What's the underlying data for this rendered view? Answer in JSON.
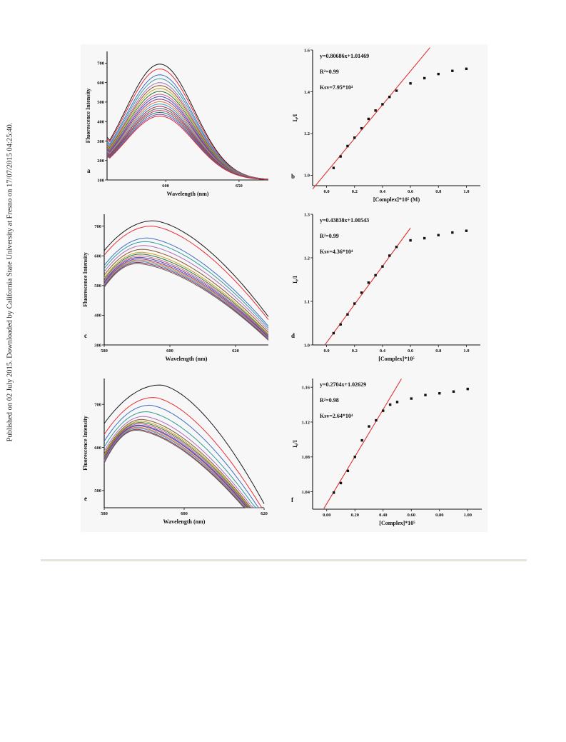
{
  "side_note": "Published on 02 July 2015. Downloaded by California State University at Fresno on 17/07/2015 04:25:40.",
  "chart_data": [
    {
      "panel_label": "a",
      "type": "line",
      "xlabel": "Wavelength (nm)",
      "ylabel": "Fluorescence Intensity",
      "xlim": [
        560,
        670
      ],
      "ylim": [
        100,
        760
      ],
      "xticks": [
        600,
        650
      ],
      "yticks": [
        100,
        200,
        300,
        400,
        500,
        600,
        700
      ],
      "grid": false,
      "peak_x": 596,
      "start_frac": 0.37,
      "end_y": 100,
      "width": 33,
      "curve_peaks": [
        695,
        670,
        640,
        620,
        600,
        585,
        570,
        555,
        540,
        528,
        515,
        502,
        490,
        478,
        467,
        457,
        447,
        437,
        428
      ]
    },
    {
      "panel_label": "c",
      "type": "line",
      "xlabel": "Wavelength (nm)",
      "ylabel": "Fluorescence Intensity",
      "xlim": [
        580,
        630
      ],
      "ylim": [
        300,
        740
      ],
      "xticks": [
        580,
        600,
        620
      ],
      "yticks": [
        300,
        400,
        500,
        600,
        700
      ],
      "grid": false,
      "peak_x": 595,
      "peak_x_low": 590,
      "start_frac": 0.86,
      "end_frac": 0.55,
      "width": 22,
      "curve_peaks": [
        718,
        700,
        660,
        648,
        635,
        622,
        612,
        606,
        600,
        595,
        590,
        586,
        582,
        578,
        574
      ]
    },
    {
      "panel_label": "e",
      "type": "line",
      "xlabel": "Wavelength (nm)",
      "ylabel": "Fluorescence Intensity",
      "xlim": [
        580,
        620
      ],
      "ylim": [
        460,
        760
      ],
      "xticks": [
        580,
        600,
        620
      ],
      "yticks": [
        500,
        600,
        700
      ],
      "grid": false,
      "peak_x": 594,
      "peak_x_low": 588,
      "start_frac": 0.88,
      "end_frac": 0.63,
      "width": 17,
      "curve_peaks": [
        745,
        716,
        698,
        683,
        672,
        665,
        661,
        658,
        655,
        652,
        650,
        647,
        645,
        642,
        640
      ]
    },
    {
      "panel_label": "b",
      "type": "scatter",
      "xlabel": "[Complex]*10⁵ (M)",
      "ylabel": "I₀/I",
      "xlim": [
        -0.1,
        1.1
      ],
      "ylim": [
        0.95,
        1.6
      ],
      "xticks": [
        0.0,
        0.2,
        0.4,
        0.6,
        0.8,
        1.0
      ],
      "yticks": [
        1.0,
        1.2,
        1.4,
        1.6
      ],
      "tick_decimals": 1,
      "grid": false,
      "annotations": [
        "y=0.80686x+1.01469",
        "R²=0.99",
        "Ksv=7.95*10⁴"
      ],
      "fit": {
        "slope": 0.80686,
        "intercept": 1.01469,
        "x_range": [
          -0.1,
          0.74
        ]
      },
      "x": [
        0.05,
        0.1,
        0.15,
        0.2,
        0.25,
        0.3,
        0.35,
        0.4,
        0.45,
        0.5,
        0.6,
        0.7,
        0.8,
        0.9,
        1.0
      ],
      "y": [
        1.035,
        1.09,
        1.14,
        1.18,
        1.225,
        1.27,
        1.31,
        1.34,
        1.375,
        1.405,
        1.44,
        1.465,
        1.485,
        1.5,
        1.51
      ]
    },
    {
      "panel_label": "d",
      "type": "scatter",
      "xlabel": "[Complex]*10⁵",
      "ylabel": "I₀/I",
      "xlim": [
        -0.1,
        1.1
      ],
      "ylim": [
        1.0,
        1.3
      ],
      "xticks": [
        0.0,
        0.2,
        0.4,
        0.6,
        0.8,
        1.0
      ],
      "yticks": [
        1.0,
        1.1,
        1.2,
        1.3
      ],
      "tick_decimals": 1,
      "grid": false,
      "annotations": [
        "y=0.43838x+1.00543",
        "R²=0.99",
        "Ksv=4.36*10⁴"
      ],
      "fit": {
        "slope": 0.43838,
        "intercept": 1.00543,
        "x_range": [
          -0.01,
          0.6
        ]
      },
      "x": [
        0.05,
        0.1,
        0.15,
        0.2,
        0.25,
        0.3,
        0.35,
        0.4,
        0.45,
        0.5,
        0.6,
        0.7,
        0.8,
        0.9,
        1.0
      ],
      "y": [
        1.027,
        1.047,
        1.07,
        1.095,
        1.12,
        1.143,
        1.16,
        1.18,
        1.205,
        1.225,
        1.24,
        1.245,
        1.252,
        1.258,
        1.262
      ]
    },
    {
      "panel_label": "f",
      "type": "scatter",
      "xlabel": "[Complex]*10⁵",
      "ylabel": "I₀/I",
      "xlim": [
        -0.1,
        1.1
      ],
      "ylim": [
        1.02,
        1.17
      ],
      "xticks": [
        0.0,
        0.2,
        0.4,
        0.6,
        0.8,
        1.0
      ],
      "yticks": [
        1.04,
        1.08,
        1.12,
        1.16
      ],
      "tick_decimals": 2,
      "grid": false,
      "annotations": [
        "y=0.2704x+1.02629",
        "R²=0.98",
        "Ksv=2.64*10⁴"
      ],
      "fit": {
        "slope": 0.2704,
        "intercept": 1.02629,
        "x_range": [
          -0.02,
          0.53
        ]
      },
      "x": [
        0.05,
        0.1,
        0.15,
        0.2,
        0.25,
        0.3,
        0.35,
        0.4,
        0.45,
        0.5,
        0.6,
        0.7,
        0.8,
        0.9,
        1.0
      ],
      "y": [
        1.039,
        1.05,
        1.064,
        1.08,
        1.099,
        1.115,
        1.122,
        1.133,
        1.14,
        1.143,
        1.147,
        1.151,
        1.153,
        1.155,
        1.158
      ]
    }
  ],
  "colors": {
    "curves": [
      "#1a1a1a",
      "#e8303a",
      "#3b6fc9",
      "#2f9e98",
      "#b06cc0",
      "#8a5a2b",
      "#c9a230",
      "#2a7a3a",
      "#d45f8a",
      "#4a4ab0",
      "#7b3f9a",
      "#e07a30",
      "#3a9ad0",
      "#a0304a",
      "#606060",
      "#c03060",
      "#208080",
      "#9040b0",
      "#d03030"
    ],
    "fit_line": "#e03030",
    "markers": "#111111",
    "axes": "#111111"
  }
}
